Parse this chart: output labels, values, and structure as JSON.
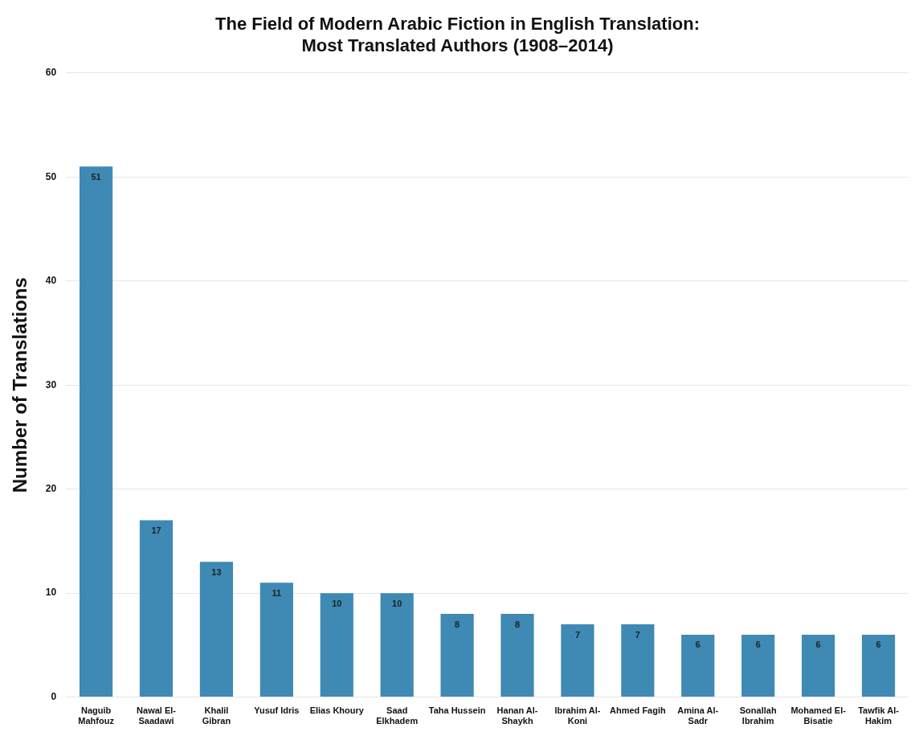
{
  "chart_data": {
    "type": "bar",
    "title": "The Field of Modern Arabic Fiction in English Translation:\nMost Translated Authors (1908–2014)",
    "ylabel": "Number of Translations",
    "categories": [
      "Naguib Mahfouz",
      "Nawal El-Saadawi",
      "Khalil Gibran",
      "Yusuf Idris",
      "Elias Khoury",
      "Saad Elkhadem",
      "Taha Hussein",
      "Hanan Al-Shaykh",
      "Ibrahim Al-Koni",
      "Ahmed Fagih",
      "Amina Al-Sadr",
      "Sonallah Ibrahim",
      "Mohamed El-Bisatie",
      "Tawfik Al-Hakim"
    ],
    "values": [
      51,
      17,
      13,
      11,
      10,
      10,
      8,
      8,
      7,
      7,
      6,
      6,
      6,
      6
    ],
    "color": "#3f89b5",
    "ylim": [
      0,
      60
    ],
    "yticks": [
      0,
      10,
      20,
      30,
      40,
      50,
      60
    ],
    "grid": "y",
    "data_labels": true,
    "legend": false
  }
}
